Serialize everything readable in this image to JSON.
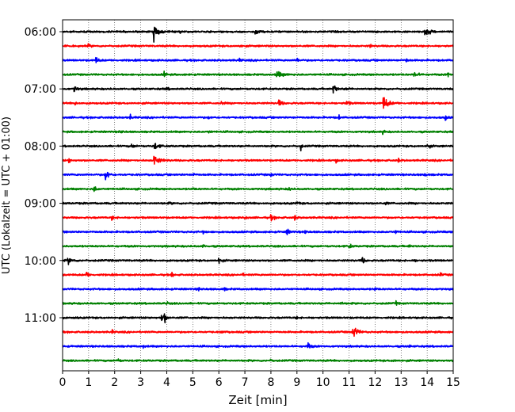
{
  "chart_data": {
    "type": "line",
    "subtype": "helicorder-seismogram",
    "title": "",
    "xlabel": "Zeit  [min]",
    "ylabel": "UTC (Lokalzeit = UTC + 01:00)",
    "xlim": [
      0,
      15
    ],
    "xticks": [
      0,
      1,
      2,
      3,
      4,
      5,
      6,
      7,
      8,
      9,
      10,
      11,
      12,
      13,
      14,
      15
    ],
    "grid": "vertical-dotted",
    "trace_interval_min": 15,
    "trace_color_cycle": [
      "#000000",
      "#ff0000",
      "#0000ff",
      "#008000"
    ],
    "ytick_labels": [
      {
        "label": "06:00",
        "row": 0
      },
      {
        "label": "07:00",
        "row": 4
      },
      {
        "label": "08:00",
        "row": 8
      },
      {
        "label": "09:00",
        "row": 12
      },
      {
        "label": "10:00",
        "row": 16
      },
      {
        "label": "11:00",
        "row": 20
      }
    ],
    "rows": [
      {
        "start": "06:00",
        "color": "#000000",
        "events": [
          [
            3.5,
            1.0,
            0.12
          ],
          [
            7.4,
            0.45,
            0.08
          ],
          [
            13.9,
            0.5,
            0.15
          ],
          [
            4.5,
            0.2,
            0.05
          ],
          [
            12.0,
            0.2,
            0.05
          ]
        ]
      },
      {
        "start": "06:15",
        "color": "#ff0000",
        "events": [
          [
            1.0,
            0.25,
            0.05
          ],
          [
            6.8,
            0.2,
            0.05
          ],
          [
            11.8,
            0.2,
            0.05
          ]
        ]
      },
      {
        "start": "06:30",
        "color": "#0000ff",
        "events": [
          [
            1.25,
            0.5,
            0.08
          ],
          [
            9.0,
            0.45,
            0.04
          ],
          [
            6.8,
            0.2,
            0.05
          ],
          [
            13.2,
            0.25,
            0.05
          ]
        ]
      },
      {
        "start": "06:45",
        "color": "#008000",
        "events": [
          [
            3.9,
            0.3,
            0.06
          ],
          [
            8.2,
            0.4,
            0.18
          ],
          [
            13.5,
            0.3,
            0.12
          ],
          [
            14.8,
            0.4,
            0.03
          ]
        ]
      },
      {
        "start": "07:00",
        "color": "#000000",
        "events": [
          [
            0.45,
            0.4,
            0.08
          ],
          [
            10.4,
            0.7,
            0.08
          ],
          [
            10.9,
            0.2,
            0.05
          ],
          [
            4.0,
            0.2,
            0.05
          ]
        ]
      },
      {
        "start": "07:15",
        "color": "#ff0000",
        "events": [
          [
            0.5,
            0.3,
            0.05
          ],
          [
            8.3,
            0.4,
            0.1
          ],
          [
            10.9,
            0.35,
            0.08
          ],
          [
            12.3,
            0.9,
            0.15
          ],
          [
            6.1,
            0.2,
            0.05
          ]
        ]
      },
      {
        "start": "07:30",
        "color": "#0000ff",
        "events": [
          [
            2.6,
            0.3,
            0.04
          ],
          [
            10.6,
            0.45,
            0.03
          ],
          [
            14.7,
            0.5,
            0.03
          ],
          [
            5.6,
            0.2,
            0.05
          ]
        ]
      },
      {
        "start": "07:45",
        "color": "#008000",
        "events": [
          [
            2.2,
            0.3,
            0.05
          ],
          [
            5.6,
            0.25,
            0.04
          ],
          [
            12.3,
            0.25,
            0.05
          ]
        ]
      },
      {
        "start": "08:00",
        "color": "#000000",
        "events": [
          [
            2.65,
            0.3,
            0.06
          ],
          [
            3.5,
            0.5,
            0.12
          ],
          [
            9.15,
            0.5,
            0.03
          ],
          [
            14.0,
            0.3,
            0.08
          ]
        ]
      },
      {
        "start": "08:15",
        "color": "#ff0000",
        "events": [
          [
            0.25,
            0.5,
            0.03
          ],
          [
            3.5,
            0.7,
            0.15
          ],
          [
            10.5,
            0.2,
            0.05
          ],
          [
            12.9,
            0.2,
            0.05
          ]
        ]
      },
      {
        "start": "08:30",
        "color": "#0000ff",
        "events": [
          [
            1.65,
            0.9,
            0.08
          ],
          [
            5.0,
            0.3,
            0.04
          ],
          [
            13.9,
            0.4,
            0.03
          ],
          [
            8.0,
            0.2,
            0.06
          ]
        ]
      },
      {
        "start": "08:45",
        "color": "#008000",
        "events": [
          [
            1.2,
            0.4,
            0.08
          ],
          [
            8.7,
            0.25,
            0.04
          ],
          [
            5.0,
            0.15,
            0.05
          ]
        ]
      },
      {
        "start": "09:00",
        "color": "#000000",
        "events": [
          [
            9.0,
            0.25,
            0.06
          ],
          [
            4.1,
            0.15,
            0.05
          ],
          [
            12.4,
            0.15,
            0.05
          ]
        ]
      },
      {
        "start": "09:15",
        "color": "#ff0000",
        "events": [
          [
            1.9,
            0.3,
            0.06
          ],
          [
            7.0,
            0.25,
            0.03
          ],
          [
            8.0,
            0.3,
            0.1
          ],
          [
            8.9,
            0.3,
            0.06
          ]
        ]
      },
      {
        "start": "09:30",
        "color": "#0000ff",
        "events": [
          [
            8.6,
            0.4,
            0.08
          ],
          [
            9.3,
            0.35,
            0.03
          ],
          [
            5.4,
            0.15,
            0.05
          ],
          [
            12.8,
            0.2,
            0.05
          ]
        ]
      },
      {
        "start": "09:45",
        "color": "#008000",
        "events": [
          [
            5.4,
            0.3,
            0.03
          ],
          [
            11.0,
            0.35,
            0.06
          ],
          [
            13.3,
            0.15,
            0.05
          ]
        ]
      },
      {
        "start": "10:00",
        "color": "#000000",
        "events": [
          [
            0.2,
            0.4,
            0.12
          ],
          [
            6.0,
            0.45,
            0.06
          ],
          [
            11.5,
            0.4,
            0.08
          ],
          [
            13.5,
            0.2,
            0.04
          ]
        ]
      },
      {
        "start": "10:15",
        "color": "#ff0000",
        "events": [
          [
            0.9,
            0.4,
            0.08
          ],
          [
            4.2,
            0.4,
            0.03
          ],
          [
            6.9,
            0.3,
            0.03
          ],
          [
            14.5,
            0.25,
            0.05
          ]
        ]
      },
      {
        "start": "10:30",
        "color": "#0000ff",
        "events": [
          [
            5.2,
            0.35,
            0.04
          ],
          [
            6.2,
            0.25,
            0.04
          ],
          [
            12.0,
            0.2,
            0.05
          ]
        ]
      },
      {
        "start": "10:45",
        "color": "#008000",
        "events": [
          [
            10.7,
            0.25,
            0.04
          ],
          [
            12.8,
            0.3,
            0.03
          ],
          [
            4.0,
            0.15,
            0.05
          ]
        ]
      },
      {
        "start": "11:00",
        "color": "#000000",
        "events": [
          [
            3.8,
            0.6,
            0.03
          ],
          [
            3.9,
            0.8,
            0.06
          ],
          [
            0.5,
            0.2,
            0.03
          ],
          [
            9.0,
            0.15,
            0.05
          ]
        ]
      },
      {
        "start": "11:15",
        "color": "#ff0000",
        "events": [
          [
            11.15,
            0.9,
            0.12
          ],
          [
            1.9,
            0.2,
            0.04
          ],
          [
            6.1,
            0.2,
            0.05
          ]
        ]
      },
      {
        "start": "11:30",
        "color": "#0000ff",
        "events": [
          [
            9.4,
            0.5,
            0.08
          ],
          [
            3.1,
            0.15,
            0.05
          ],
          [
            13.3,
            0.15,
            0.05
          ]
        ]
      },
      {
        "start": "11:45",
        "color": "#008000",
        "events": [
          [
            2.1,
            0.35,
            0.06
          ],
          [
            8.0,
            0.15,
            0.05
          ],
          [
            12.7,
            0.15,
            0.05
          ]
        ]
      }
    ]
  }
}
